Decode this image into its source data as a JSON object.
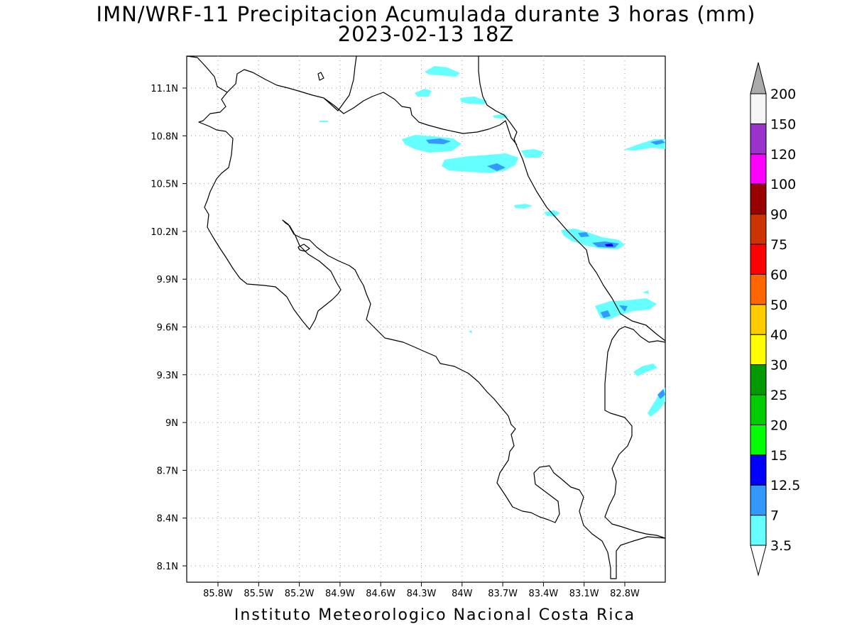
{
  "title": {
    "line1": "IMN/WRF-11 Precipitacion Acumulada durante 3 horas (mm)",
    "line2": "2023-02-13 18Z"
  },
  "footer": "Instituto Meteorologico Nacional Costa Rica",
  "map": {
    "x_ticks": [
      "85.8W",
      "85.5W",
      "85.2W",
      "84.9W",
      "84.6W",
      "84.3W",
      "84W",
      "83.7W",
      "83.4W",
      "83.1W",
      "82.8W"
    ],
    "y_ticks": [
      "11.1N",
      "10.8N",
      "10.5N",
      "10.2N",
      "9.9N",
      "9.6N",
      "9.3N",
      "9N",
      "8.7N",
      "8.4N",
      "8.1N"
    ],
    "grid": "dotted",
    "coastline_color": "#000000"
  },
  "colorbar": {
    "levels": [
      "3.5",
      "7",
      "12.5",
      "15",
      "20",
      "25",
      "30",
      "40",
      "50",
      "60",
      "75",
      "90",
      "100",
      "120",
      "150",
      "200"
    ],
    "colors": [
      "#66ffff",
      "#3399ff",
      "#0000ff",
      "#00ff00",
      "#00cc00",
      "#009900",
      "#ffff00",
      "#ffcc00",
      "#ff6600",
      "#ff0000",
      "#cc3300",
      "#990000",
      "#ff00ff",
      "#9933cc",
      "#f5f5f5",
      "#aaaaaa"
    ]
  },
  "precip_colors": {
    "light": "#66ffff",
    "medium": "#3399ff",
    "heavy": "#0000ff"
  }
}
